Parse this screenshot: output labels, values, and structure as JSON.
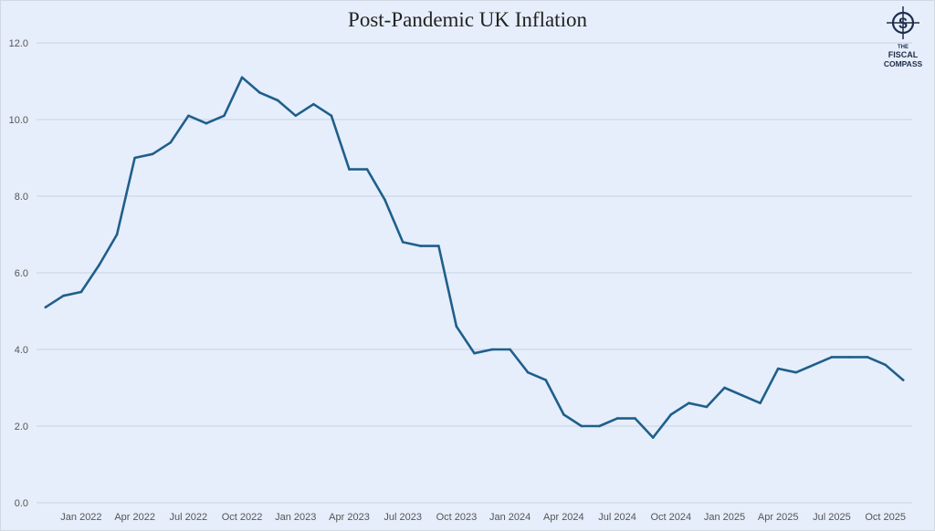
{
  "chart_data": {
    "type": "line",
    "title": "Post-Pandemic UK Inflation",
    "xlabel": "",
    "ylabel": "",
    "ylim": [
      0,
      12
    ],
    "yticks": [
      "0.0",
      "2.0",
      "4.0",
      "6.0",
      "8.0",
      "10.0",
      "12.0"
    ],
    "grid": true,
    "legend": "none",
    "x": [
      "Nov 2021",
      "Dec 2021",
      "Jan 2022",
      "Feb 2022",
      "Mar 2022",
      "Apr 2022",
      "May 2022",
      "Jun 2022",
      "Jul 2022",
      "Aug 2022",
      "Sep 2022",
      "Oct 2022",
      "Nov 2022",
      "Dec 2022",
      "Jan 2023",
      "Feb 2023",
      "Mar 2023",
      "Apr 2023",
      "May 2023",
      "Jun 2023",
      "Jul 2023",
      "Aug 2023",
      "Sep 2023",
      "Oct 2023",
      "Nov 2023",
      "Dec 2023",
      "Jan 2024",
      "Feb 2024",
      "Mar 2024",
      "Apr 2024",
      "May 2024",
      "Jun 2024",
      "Jul 2024",
      "Aug 2024",
      "Sep 2024",
      "Oct 2024",
      "Nov 2024",
      "Dec 2024",
      "Jan 2025",
      "Feb 2025",
      "Mar 2025",
      "Apr 2025",
      "May 2025",
      "Jun 2025",
      "Jul 2025",
      "Aug 2025",
      "Sep 2025",
      "Oct 2025",
      "Nov 2025"
    ],
    "xtick_labels": [
      "Jan 2022",
      "Apr 2022",
      "Jul 2022",
      "Oct 2022",
      "Jan 2023",
      "Apr 2023",
      "Jul 2023",
      "Oct 2023",
      "Jan 2024",
      "Apr 2024",
      "Jul 2024",
      "Oct 2024",
      "Jan 2025",
      "Apr 2025",
      "Jul 2025",
      "Oct 2025"
    ],
    "series": [
      {
        "values": [
          5.1,
          5.4,
          5.5,
          6.2,
          7.0,
          9.0,
          9.1,
          9.4,
          10.1,
          9.9,
          10.1,
          11.1,
          10.7,
          10.5,
          10.1,
          10.4,
          10.1,
          8.7,
          8.7,
          7.9,
          6.8,
          6.7,
          6.7,
          4.6,
          3.9,
          4.0,
          4.0,
          3.4,
          3.2,
          2.3,
          2.0,
          2.0,
          2.2,
          2.2,
          1.7,
          2.3,
          2.6,
          2.5,
          3.0,
          2.8,
          2.6,
          3.5,
          3.4,
          3.6,
          3.8,
          3.8,
          3.8,
          3.6,
          3.2
        ],
        "color": "#1f5f8b"
      }
    ]
  },
  "logo": {
    "text": "THE FISCAL COMPASS",
    "icon": "compass-dollar-icon"
  },
  "colors": {
    "background": "#e6eefb",
    "line": "#1f5f8b",
    "grid": "#c8d3e3",
    "text": "#555555"
  }
}
